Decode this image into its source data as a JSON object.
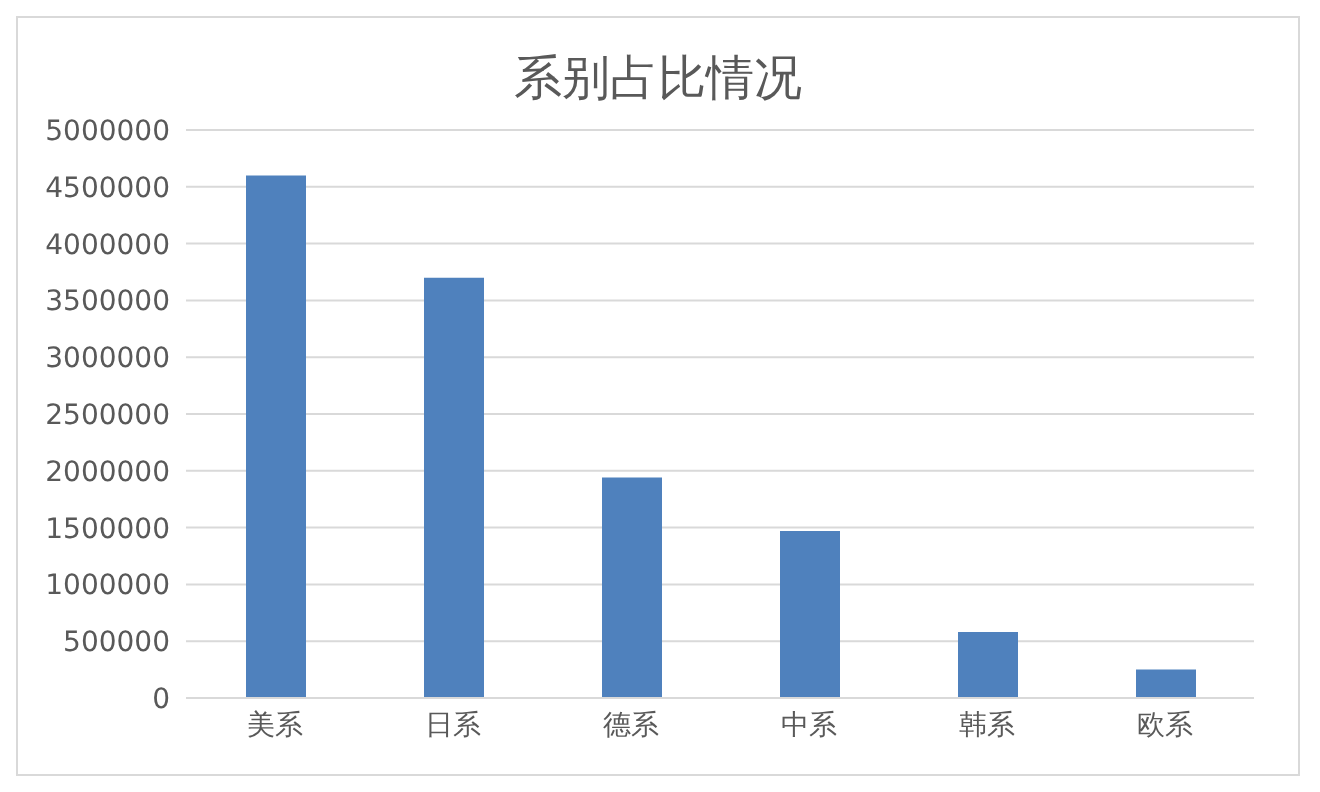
{
  "chart_data": {
    "type": "bar",
    "title": "系别占比情况",
    "categories": [
      "美系",
      "日系",
      "德系",
      "中系",
      "韩系",
      "欧系"
    ],
    "values": [
      4600000,
      3700000,
      1940000,
      1470000,
      580000,
      250000
    ],
    "color": "#4f81bd",
    "ylim": [
      0,
      5000000
    ],
    "yticks": [
      0,
      500000,
      1000000,
      1500000,
      2000000,
      2500000,
      3000000,
      3500000,
      4000000,
      4500000,
      5000000
    ],
    "grid": "y"
  }
}
